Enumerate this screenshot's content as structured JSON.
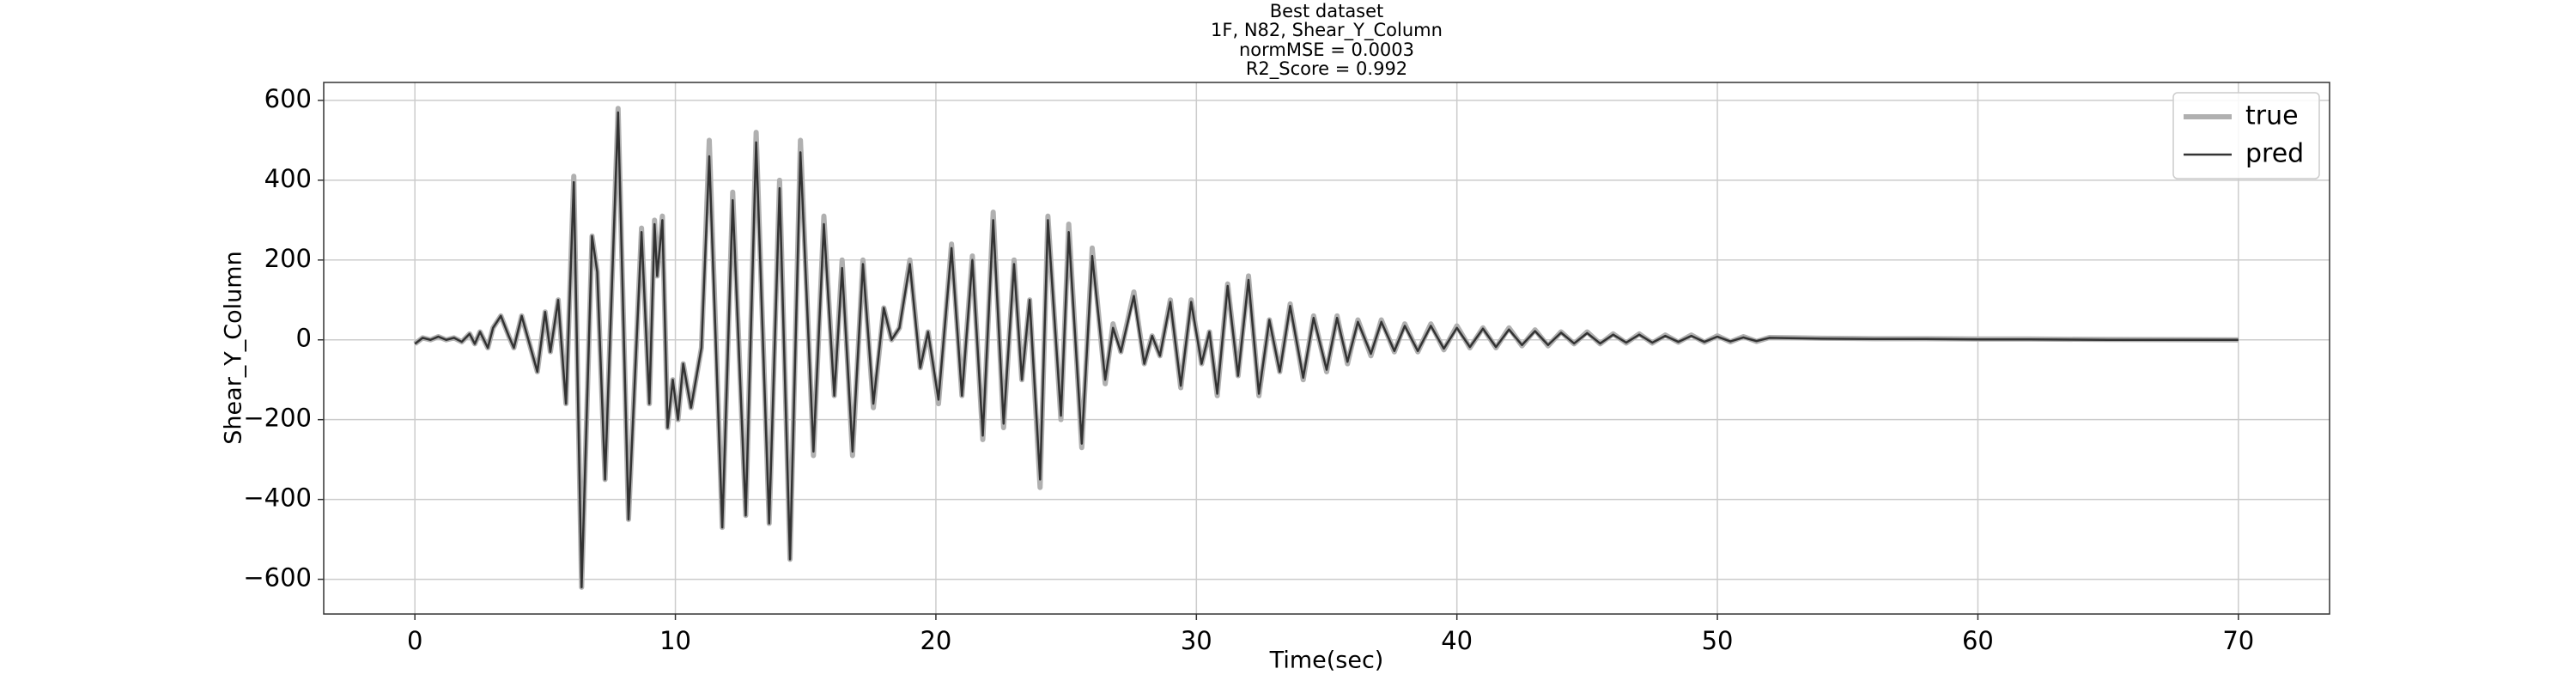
{
  "chart_data": {
    "type": "line",
    "title": "Best dataset",
    "subtitle": [
      "1F, N82, Shear_Y_Column",
      "normMSE = 0.0003",
      "R2_Score = 0.992"
    ],
    "xlabel": "Time(sec)",
    "ylabel": "Shear_Y_Column",
    "xlim": [
      -3.5,
      73.5
    ],
    "ylim": [
      -687,
      645
    ],
    "xticks": [
      0,
      10,
      20,
      30,
      40,
      50,
      60,
      70
    ],
    "yticks": [
      {
        "value": -600,
        "label": "−600"
      },
      {
        "value": -400,
        "label": "−400"
      },
      {
        "value": -200,
        "label": "−200"
      },
      0,
      200,
      400,
      600
    ],
    "grid": true,
    "legend": "upper right",
    "x": [
      0,
      0.3,
      0.6,
      0.9,
      1.2,
      1.5,
      1.8,
      2.1,
      2.3,
      2.5,
      2.8,
      3.0,
      3.3,
      3.6,
      3.8,
      4.1,
      4.4,
      4.7,
      5.0,
      5.2,
      5.5,
      5.8,
      6.1,
      6.4,
      6.8,
      7.0,
      7.3,
      7.8,
      8.2,
      8.7,
      9.0,
      9.2,
      9.3,
      9.5,
      9.7,
      9.9,
      10.1,
      10.3,
      10.6,
      11.0,
      11.3,
      11.8,
      12.2,
      12.7,
      13.1,
      13.6,
      14.0,
      14.4,
      14.8,
      15.3,
      15.7,
      16.1,
      16.4,
      16.8,
      17.2,
      17.6,
      18.0,
      18.3,
      18.6,
      19.0,
      19.4,
      19.7,
      20.1,
      20.6,
      21.0,
      21.4,
      21.8,
      22.2,
      22.6,
      23.0,
      23.3,
      23.6,
      24.0,
      24.3,
      24.8,
      25.1,
      25.6,
      26.0,
      26.5,
      26.8,
      27.1,
      27.6,
      28.0,
      28.3,
      28.6,
      29.0,
      29.4,
      29.8,
      30.2,
      30.5,
      30.8,
      31.2,
      31.6,
      32.0,
      32.4,
      32.8,
      33.2,
      33.6,
      34.1,
      34.5,
      35.0,
      35.4,
      35.8,
      36.2,
      36.7,
      37.1,
      37.6,
      38.0,
      38.5,
      39.0,
      39.5,
      40.0,
      40.5,
      41.0,
      41.5,
      42.0,
      42.5,
      43.0,
      43.5,
      44.0,
      44.5,
      45.0,
      45.5,
      46.0,
      46.5,
      47.0,
      47.5,
      48.0,
      48.5,
      49.0,
      49.5,
      50.0,
      50.5,
      51,
      51.5,
      52,
      53,
      54,
      56,
      58,
      60,
      62,
      65,
      70
    ],
    "series": [
      {
        "name": "true",
        "color": "#b0b0b0",
        "values": [
          -10,
          5,
          0,
          8,
          0,
          5,
          -5,
          15,
          -10,
          20,
          -20,
          30,
          60,
          10,
          -20,
          60,
          -10,
          -80,
          70,
          -30,
          100,
          -160,
          410,
          -620,
          260,
          170,
          -350,
          580,
          -450,
          280,
          -160,
          300,
          160,
          310,
          -220,
          -100,
          -200,
          -60,
          -170,
          -20,
          500,
          -470,
          370,
          -440,
          520,
          -460,
          400,
          -550,
          500,
          -290,
          310,
          -140,
          200,
          -290,
          200,
          -170,
          80,
          0,
          30,
          200,
          -70,
          20,
          -160,
          240,
          -140,
          210,
          -250,
          320,
          -220,
          200,
          -100,
          100,
          -370,
          310,
          -200,
          290,
          -270,
          230,
          -110,
          40,
          -30,
          120,
          -60,
          10,
          -40,
          100,
          -120,
          100,
          -60,
          20,
          -140,
          140,
          -90,
          160,
          -140,
          50,
          -80,
          90,
          -100,
          60,
          -80,
          60,
          -60,
          50,
          -40,
          50,
          -30,
          40,
          -30,
          40,
          -25,
          35,
          -20,
          30,
          -20,
          30,
          -15,
          25,
          -15,
          20,
          -10,
          20,
          -10,
          15,
          -8,
          15,
          -8,
          12,
          -6,
          12,
          -6,
          10,
          -5,
          8,
          -4,
          6,
          5,
          4,
          3,
          3,
          2,
          2,
          1,
          0
        ]
      },
      {
        "name": "pred",
        "color": "#333333",
        "values": [
          -10,
          5,
          0,
          8,
          0,
          5,
          -5,
          15,
          -10,
          20,
          -20,
          30,
          60,
          10,
          -20,
          60,
          -10,
          -80,
          70,
          -30,
          100,
          -160,
          395,
          -620,
          260,
          170,
          -350,
          570,
          -450,
          270,
          -160,
          290,
          160,
          300,
          -220,
          -100,
          -200,
          -60,
          -170,
          -20,
          460,
          -470,
          350,
          -440,
          495,
          -460,
          380,
          -550,
          470,
          -280,
          290,
          -140,
          180,
          -280,
          190,
          -160,
          80,
          0,
          30,
          190,
          -70,
          20,
          -150,
          230,
          -140,
          200,
          -240,
          300,
          -210,
          190,
          -100,
          100,
          -350,
          300,
          -190,
          270,
          -260,
          210,
          -100,
          30,
          -30,
          110,
          -60,
          10,
          -40,
          95,
          -115,
          95,
          -60,
          20,
          -135,
          135,
          -90,
          150,
          -135,
          50,
          -80,
          85,
          -95,
          55,
          -75,
          55,
          -55,
          45,
          -35,
          45,
          -28,
          35,
          -28,
          35,
          -22,
          30,
          -18,
          28,
          -18,
          26,
          -13,
          22,
          -13,
          18,
          -9,
          17,
          -9,
          13,
          -7,
          13,
          -7,
          10,
          -5,
          10,
          -5,
          8,
          -4,
          6,
          -3,
          5,
          4,
          3,
          2,
          2,
          1,
          1,
          0,
          0
        ]
      }
    ]
  }
}
